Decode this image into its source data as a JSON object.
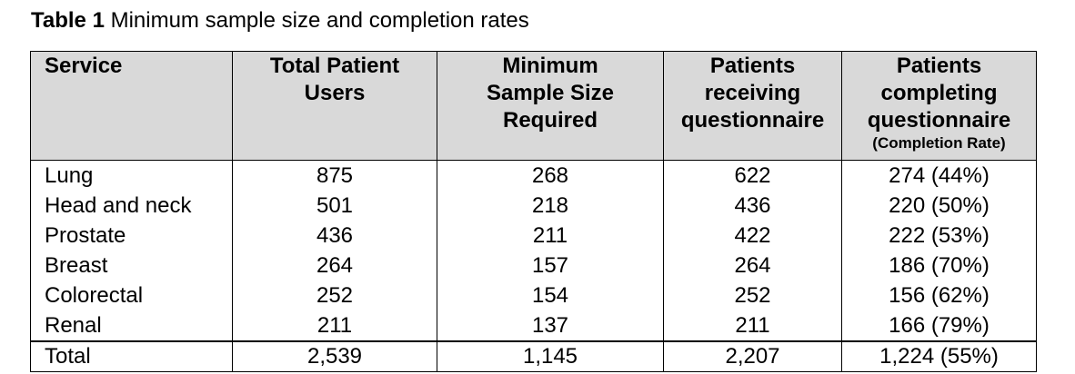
{
  "caption": {
    "label": "Table 1",
    "text": " Minimum sample size and completion rates"
  },
  "table": {
    "headers": [
      {
        "main": "Service",
        "sub": ""
      },
      {
        "main": "Total Patient Users",
        "sub": ""
      },
      {
        "main": "Minimum Sample Size Required",
        "sub": ""
      },
      {
        "main": "Patients receiving questionnaire",
        "sub": ""
      },
      {
        "main": "Patients completing questionnaire",
        "sub": "(Completion Rate)"
      }
    ],
    "rows": [
      [
        "Lung",
        "875",
        "268",
        "622",
        "274 (44%)"
      ],
      [
        "Head and neck",
        "501",
        "218",
        "436",
        "220 (50%)"
      ],
      [
        "Prostate",
        "436",
        "211",
        "422",
        "222 (53%)"
      ],
      [
        "Breast",
        "264",
        "157",
        "264",
        "186 (70%)"
      ],
      [
        "Colorectal",
        "252",
        "154",
        "252",
        "156 (62%)"
      ],
      [
        "Renal",
        "211",
        "137",
        "211",
        "166 (79%)"
      ]
    ],
    "total": [
      "Total",
      "2,539",
      "1,145",
      "2,207",
      "1,224 (55%)"
    ]
  },
  "colors": {
    "header_bg": "#d9d9d9",
    "text": "#000000",
    "border": "#000000"
  }
}
